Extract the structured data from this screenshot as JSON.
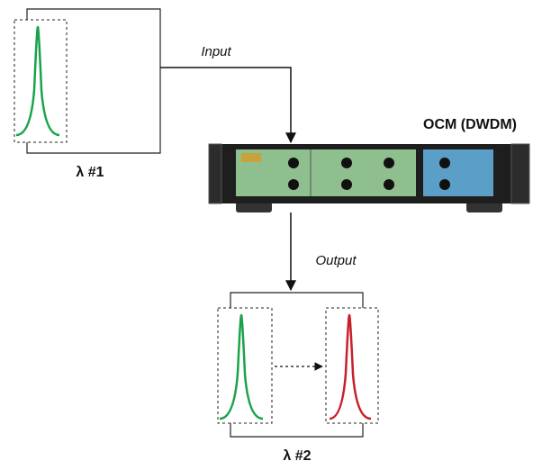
{
  "labels": {
    "input": "Input",
    "device": "OCM (DWDM)",
    "lambda1": "λ #1",
    "output": "Output",
    "lambda2": "λ #2"
  }
}
